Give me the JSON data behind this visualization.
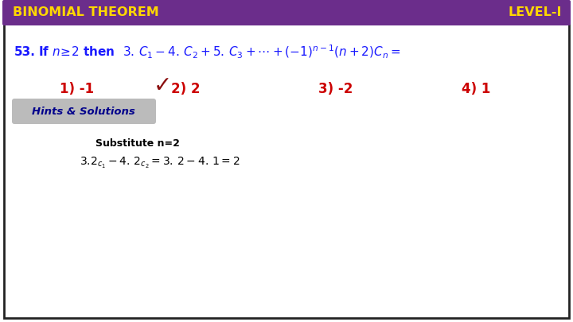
{
  "header_bg_color": "#6B2D8B",
  "header_text_left": "BINOMIAL THEOREM",
  "header_text_right": "LEVEL-I",
  "header_text_color": "#FFD700",
  "main_bg_color": "#FFFFFF",
  "border_color": "#222222",
  "question_color": "#1a1aff",
  "options_color": "#cc0000",
  "checkmark_color": "#8B1010",
  "hints_bg_color": "#BBBBBB",
  "hints_text": "Hints & Solutions",
  "hints_text_color": "#00008B",
  "substitute_color": "#000000",
  "solution_color": "#000000"
}
